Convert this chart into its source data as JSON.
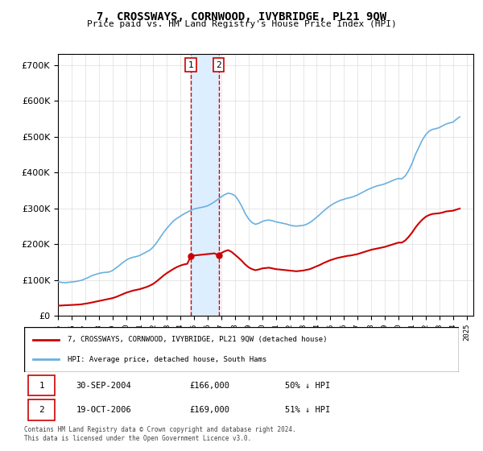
{
  "title": "7, CROSSWAYS, CORNWOOD, IVYBRIDGE, PL21 9QW",
  "subtitle": "Price paid vs. HM Land Registry's House Price Index (HPI)",
  "ylabel_ticks": [
    "£0",
    "£100K",
    "£200K",
    "£300K",
    "£400K",
    "£500K",
    "£600K",
    "£700K"
  ],
  "ytick_values": [
    0,
    100000,
    200000,
    300000,
    400000,
    500000,
    600000,
    700000
  ],
  "ylim": [
    0,
    730000
  ],
  "xlim_start": 1995.0,
  "xlim_end": 2025.5,
  "hpi_color": "#6ab0e0",
  "price_color": "#cc0000",
  "transaction_color": "#cc0000",
  "shade_color": "#ddeeff",
  "transactions": [
    {
      "date": "30-SEP-2004",
      "price": 166000,
      "label": "1",
      "year": 2004.75
    },
    {
      "date": "19-OCT-2006",
      "price": 169000,
      "label": "2",
      "year": 2006.8
    }
  ],
  "legend_entry1": "7, CROSSWAYS, CORNWOOD, IVYBRIDGE, PL21 9QW (detached house)",
  "legend_entry2": "HPI: Average price, detached house, South Hams",
  "footnote1": "Contains HM Land Registry data © Crown copyright and database right 2024.",
  "footnote2": "This data is licensed under the Open Government Licence v3.0.",
  "table_rows": [
    [
      "1",
      "30-SEP-2004",
      "£166,000",
      "50% ↓ HPI"
    ],
    [
      "2",
      "19-OCT-2006",
      "£169,000",
      "51% ↓ HPI"
    ]
  ],
  "hpi_data_x": [
    1995.0,
    1995.25,
    1995.5,
    1995.75,
    1996.0,
    1996.25,
    1996.5,
    1996.75,
    1997.0,
    1997.25,
    1997.5,
    1997.75,
    1998.0,
    1998.25,
    1998.5,
    1998.75,
    1999.0,
    1999.25,
    1999.5,
    1999.75,
    2000.0,
    2000.25,
    2000.5,
    2000.75,
    2001.0,
    2001.25,
    2001.5,
    2001.75,
    2002.0,
    2002.25,
    2002.5,
    2002.75,
    2003.0,
    2003.25,
    2003.5,
    2003.75,
    2004.0,
    2004.25,
    2004.5,
    2004.75,
    2005.0,
    2005.25,
    2005.5,
    2005.75,
    2006.0,
    2006.25,
    2006.5,
    2006.75,
    2007.0,
    2007.25,
    2007.5,
    2007.75,
    2008.0,
    2008.25,
    2008.5,
    2008.75,
    2009.0,
    2009.25,
    2009.5,
    2009.75,
    2010.0,
    2010.25,
    2010.5,
    2010.75,
    2011.0,
    2011.25,
    2011.5,
    2011.75,
    2012.0,
    2012.25,
    2012.5,
    2012.75,
    2013.0,
    2013.25,
    2013.5,
    2013.75,
    2014.0,
    2014.25,
    2014.5,
    2014.75,
    2015.0,
    2015.25,
    2015.5,
    2015.75,
    2016.0,
    2016.25,
    2016.5,
    2016.75,
    2017.0,
    2017.25,
    2017.5,
    2017.75,
    2018.0,
    2018.25,
    2018.5,
    2018.75,
    2019.0,
    2019.25,
    2019.5,
    2019.75,
    2020.0,
    2020.25,
    2020.5,
    2020.75,
    2021.0,
    2021.25,
    2021.5,
    2021.75,
    2022.0,
    2022.25,
    2022.5,
    2022.75,
    2023.0,
    2023.25,
    2023.5,
    2023.75,
    2024.0,
    2024.25,
    2024.5
  ],
  "hpi_data_y": [
    95000,
    93000,
    92000,
    93000,
    94000,
    95000,
    97000,
    99000,
    103000,
    107000,
    112000,
    115000,
    118000,
    120000,
    121000,
    122000,
    126000,
    133000,
    140000,
    148000,
    155000,
    160000,
    163000,
    165000,
    168000,
    173000,
    178000,
    183000,
    192000,
    204000,
    218000,
    232000,
    244000,
    255000,
    265000,
    272000,
    278000,
    284000,
    289000,
    294000,
    298000,
    300000,
    302000,
    304000,
    307000,
    312000,
    318000,
    325000,
    332000,
    338000,
    342000,
    340000,
    335000,
    322000,
    305000,
    285000,
    270000,
    260000,
    255000,
    258000,
    263000,
    266000,
    267000,
    265000,
    262000,
    260000,
    258000,
    256000,
    253000,
    251000,
    250000,
    251000,
    252000,
    255000,
    260000,
    267000,
    275000,
    283000,
    292000,
    300000,
    307000,
    313000,
    318000,
    322000,
    325000,
    328000,
    330000,
    333000,
    337000,
    342000,
    347000,
    352000,
    356000,
    360000,
    363000,
    365000,
    368000,
    372000,
    376000,
    380000,
    383000,
    382000,
    390000,
    405000,
    425000,
    450000,
    470000,
    490000,
    505000,
    515000,
    520000,
    522000,
    525000,
    530000,
    535000,
    538000,
    540000,
    548000,
    555000
  ],
  "price_data_x": [
    1995.0,
    1995.25,
    1995.5,
    1995.75,
    1996.0,
    1996.25,
    1996.5,
    1996.75,
    1997.0,
    1997.25,
    1997.5,
    1997.75,
    1998.0,
    1998.25,
    1998.5,
    1998.75,
    1999.0,
    1999.25,
    1999.5,
    1999.75,
    2000.0,
    2000.25,
    2000.5,
    2000.75,
    2001.0,
    2001.25,
    2001.5,
    2001.75,
    2002.0,
    2002.25,
    2002.5,
    2002.75,
    2003.0,
    2003.25,
    2003.5,
    2003.75,
    2004.0,
    2004.25,
    2004.5,
    2004.75,
    2005.0,
    2005.25,
    2005.5,
    2005.75,
    2006.0,
    2006.25,
    2006.5,
    2006.75,
    2007.0,
    2007.25,
    2007.5,
    2007.75,
    2008.0,
    2008.25,
    2008.5,
    2008.75,
    2009.0,
    2009.25,
    2009.5,
    2009.75,
    2010.0,
    2010.25,
    2010.5,
    2010.75,
    2011.0,
    2011.25,
    2011.5,
    2011.75,
    2012.0,
    2012.25,
    2012.5,
    2012.75,
    2013.0,
    2013.25,
    2013.5,
    2013.75,
    2014.0,
    2014.25,
    2014.5,
    2014.75,
    2015.0,
    2015.25,
    2015.5,
    2015.75,
    2016.0,
    2016.25,
    2016.5,
    2016.75,
    2017.0,
    2017.25,
    2017.5,
    2017.75,
    2018.0,
    2018.25,
    2018.5,
    2018.75,
    2019.0,
    2019.25,
    2019.5,
    2019.75,
    2020.0,
    2020.25,
    2020.5,
    2020.75,
    2021.0,
    2021.25,
    2021.5,
    2021.75,
    2022.0,
    2022.25,
    2022.5,
    2022.75,
    2023.0,
    2023.25,
    2023.5,
    2023.75,
    2024.0,
    2024.25,
    2024.5
  ],
  "price_data_y": [
    28000,
    28500,
    29000,
    29500,
    30000,
    30500,
    31000,
    32000,
    33500,
    35000,
    37000,
    39000,
    41000,
    43000,
    45000,
    47000,
    49000,
    52000,
    56000,
    60000,
    64000,
    67000,
    70000,
    72000,
    74000,
    77000,
    80000,
    84000,
    89000,
    96000,
    104000,
    112000,
    119000,
    125000,
    131000,
    136000,
    140000,
    143000,
    145000,
    166000,
    168000,
    169000,
    170000,
    171000,
    172000,
    173000,
    174000,
    169000,
    175000,
    180000,
    183000,
    178000,
    170000,
    162000,
    153000,
    143000,
    135000,
    130000,
    127000,
    129000,
    132000,
    133000,
    134000,
    132000,
    130000,
    129000,
    128000,
    127000,
    126000,
    125000,
    124000,
    125000,
    126000,
    128000,
    130000,
    134000,
    138000,
    142000,
    147000,
    151000,
    155000,
    158000,
    161000,
    163000,
    165000,
    167000,
    168000,
    170000,
    172000,
    175000,
    178000,
    181000,
    184000,
    186000,
    188000,
    190000,
    192000,
    195000,
    198000,
    201000,
    204000,
    204000,
    210000,
    220000,
    232000,
    246000,
    258000,
    268000,
    276000,
    281000,
    284000,
    285000,
    286000,
    288000,
    291000,
    292000,
    293000,
    296000,
    299000
  ]
}
